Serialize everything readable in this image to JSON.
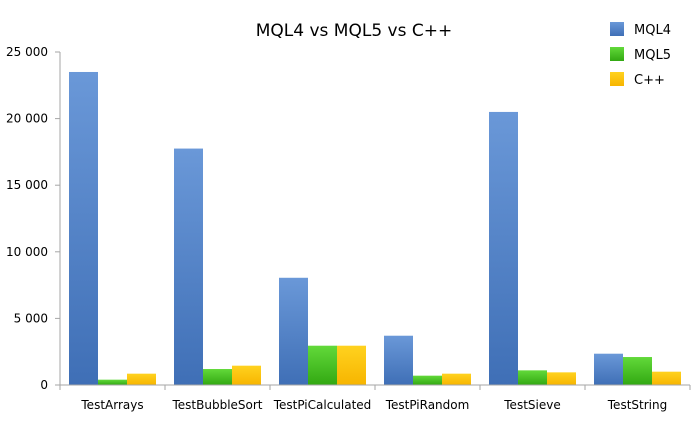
{
  "chart_data": {
    "type": "bar",
    "title": "MQL4 vs MQL5 vs C++",
    "xlabel": "",
    "ylabel": "",
    "categories": [
      "TestArrays",
      "TestBubbleSort",
      "TestPiCalculated",
      "TestPiRandom",
      "TestSieve",
      "TestString"
    ],
    "series": [
      {
        "name": "MQL4",
        "values": [
          23500,
          17750,
          8050,
          3700,
          20500,
          2350
        ],
        "color": "#4f81c7"
      },
      {
        "name": "MQL5",
        "values": [
          400,
          1200,
          2950,
          700,
          1100,
          2100
        ],
        "color": "#44c21c"
      },
      {
        "name": "C++",
        "values": [
          850,
          1450,
          2950,
          850,
          950,
          1000
        ],
        "color": "#ffc000"
      }
    ],
    "ylim": [
      0,
      25000
    ],
    "yticks": [
      0,
      5000,
      10000,
      15000,
      20000,
      25000
    ],
    "ytick_labels": [
      "0",
      "5 000",
      "10 000",
      "15 000",
      "20 000",
      "25 000"
    ],
    "grid": false,
    "legend": "top-right"
  }
}
